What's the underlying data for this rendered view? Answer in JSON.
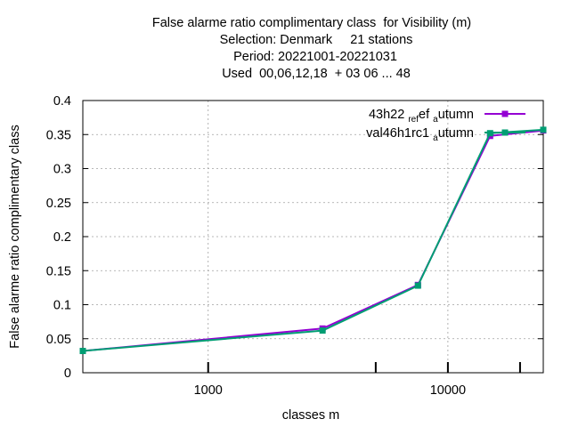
{
  "chart_data": {
    "type": "line",
    "title_lines": [
      "False alarme ratio complimentary class  for Visibility (m)",
      "Selection: Denmark     21 stations",
      "Period: 20221001-20221031",
      "Used  00,06,12,18  + 03 06 ... 48"
    ],
    "xlabel": "classes m",
    "ylabel": "False alarme ratio complimentary class",
    "x_scale": "log",
    "xlim": [
      300,
      25000
    ],
    "ylim": [
      0,
      0.4
    ],
    "x_ticks": [
      {
        "value": 1000,
        "label": "1000"
      },
      {
        "value": 10000,
        "label": "10000"
      }
    ],
    "x_minor_ticks": [
      5000,
      20000
    ],
    "y_ticks": [
      0,
      0.05,
      0.1,
      0.15,
      0.2,
      0.25,
      0.3,
      0.35,
      0.4
    ],
    "y_tick_labels": [
      "0",
      "0.05",
      "0.1",
      "0.15",
      "0.2",
      "0.25",
      "0.3",
      "0.35",
      "0.4"
    ],
    "grid": true,
    "legend_position": "top-right",
    "series": [
      {
        "name_parts": [
          "43h22",
          "ref",
          "a",
          "utumn"
        ],
        "color": "#9400d3",
        "x": [
          300,
          3000,
          7500,
          15000,
          25000
        ],
        "y": [
          0.032,
          0.065,
          0.129,
          0.348,
          0.356
        ]
      },
      {
        "name_parts": [
          "val46h1rc1",
          "",
          "a",
          "utumn"
        ],
        "color": "#009e73",
        "x": [
          300,
          3000,
          7500,
          15000,
          25000
        ],
        "y": [
          0.032,
          0.062,
          0.128,
          0.352,
          0.357
        ]
      }
    ]
  }
}
